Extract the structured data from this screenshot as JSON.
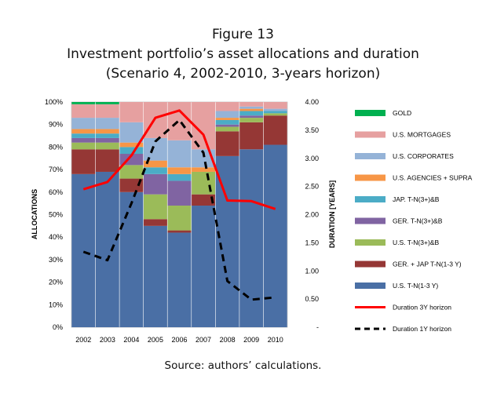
{
  "figure": {
    "title_line1": "Figure 13",
    "title_line2": "Investment portfolio’s asset allocations and duration",
    "title_line3": "(Scenario 4, 2002-2010, 3-years horizon)",
    "source": "Source: authors’ calculations."
  },
  "chart_data": {
    "type": "bar",
    "stacked": true,
    "categories": [
      "2002",
      "2003",
      "2004",
      "2005",
      "2006",
      "2007",
      "2008",
      "2009",
      "2010"
    ],
    "ylabel": "ALLOCATIONS",
    "y2label": "DURATION  [YEARS]",
    "ylim": [
      0,
      100
    ],
    "y2lim": [
      0,
      4
    ],
    "yticks": [
      "0%",
      "10%",
      "20%",
      "30%",
      "40%",
      "50%",
      "60%",
      "70%",
      "80%",
      "90%",
      "100%"
    ],
    "y2ticks": [
      "-",
      "0.50",
      "1.00",
      "1.50",
      "2.00",
      "2.50",
      "3.00",
      "3.50",
      "4.00"
    ],
    "series": [
      {
        "name": "U.S. T-N(1-3 Y)",
        "color": "#4a6fa5",
        "values": [
          68,
          69,
          60,
          45,
          42,
          54,
          76,
          79,
          81
        ]
      },
      {
        "name": "GER. + JAP T-N(1-3 Y)",
        "color": "#953735",
        "values": [
          11,
          10,
          6,
          3,
          1,
          5,
          11,
          12,
          13
        ]
      },
      {
        "name": "U.S. T-N(3+)&B",
        "color": "#9bbb59",
        "values": [
          3,
          3,
          6,
          11,
          11,
          10,
          2,
          2,
          1
        ]
      },
      {
        "name": "GER. T-N(3+)&B",
        "color": "#8064a2",
        "values": [
          2,
          2,
          5,
          9,
          11,
          0,
          1,
          1,
          0
        ]
      },
      {
        "name": "JAP. T-N(3+)&B",
        "color": "#4bacc6",
        "values": [
          2,
          2,
          3,
          3,
          3,
          0,
          2,
          2,
          1
        ]
      },
      {
        "name": "U.S. AGENCIES + SUPRA",
        "color": "#f79646",
        "values": [
          2,
          2,
          2,
          3,
          3,
          2,
          1,
          1,
          0
        ]
      },
      {
        "name": "U.S. CORPORATES",
        "color": "#95b3d7",
        "values": [
          5,
          5,
          9,
          10,
          12,
          8,
          3,
          1,
          1
        ]
      },
      {
        "name": "U.S. MORTGAGES",
        "color": "#e6a0a0",
        "values": [
          6,
          6,
          9,
          16,
          17,
          21,
          4,
          2,
          3
        ]
      },
      {
        "name": "GOLD",
        "color": "#00b050",
        "values": [
          1,
          1,
          0,
          0,
          0,
          0,
          0,
          0,
          0
        ]
      }
    ],
    "lines": [
      {
        "name": "Duration 3Y horizon",
        "color": "#ff0000",
        "style": "solid",
        "values": [
          2.45,
          2.58,
          3.05,
          3.72,
          3.85,
          3.42,
          2.25,
          2.24,
          2.1
        ]
      },
      {
        "name": "Duration 1Y horizon",
        "color": "#000000",
        "style": "dashed",
        "values": [
          1.34,
          1.19,
          2.2,
          3.3,
          3.68,
          3.1,
          0.82,
          0.49,
          0.53
        ]
      }
    ],
    "legend_order": [
      "GOLD",
      "U.S. MORTGAGES",
      "U.S. CORPORATES",
      "U.S. AGENCIES + SUPRA",
      "JAP. T-N(3+)&B",
      "GER. T-N(3+)&B",
      "U.S. T-N(3+)&B",
      "GER. + JAP T-N(1-3 Y)",
      "U.S. T-N(1-3 Y)",
      "Duration 3Y horizon",
      "Duration 1Y horizon"
    ],
    "legend_position": "right"
  }
}
